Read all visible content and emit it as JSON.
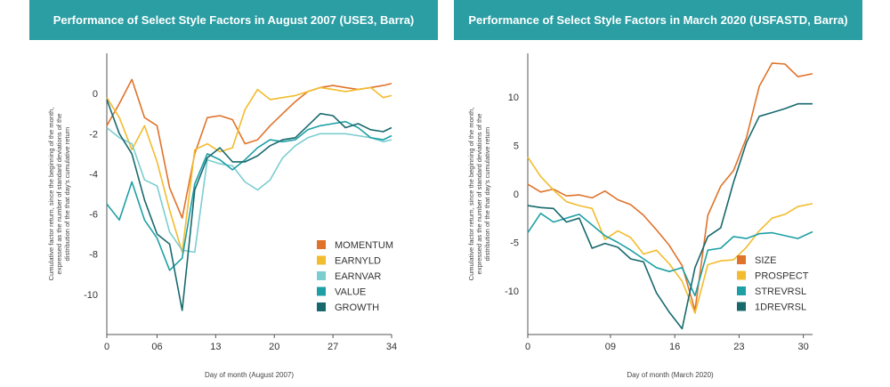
{
  "charts": [
    {
      "title": "Performance of Select Style Factors in August 2007 (USE3, Barra)",
      "xlabel": "Day of month (August 2007)",
      "ylabel_lines": [
        "Cumulative factor return, since the beginning of the month,",
        "expressed as the number of standard deviations of the",
        "distribution of the that day's cumulative return"
      ],
      "xticks": [
        "0",
        "06",
        "13",
        "20",
        "27",
        "34"
      ],
      "yticks": [
        "0",
        "-2",
        "-4",
        "-6",
        "-8",
        "-10"
      ]
    },
    {
      "title": "Performance of Select Style Factors in March 2020 (USFASTD, Barra)",
      "xlabel": "Day of month (March 2020)",
      "ylabel_lines": [
        "Cumulative factor return, since the beginning of the month,",
        "expressed as the number of standard deviations of the",
        "distribution of the that day's cumulative return"
      ],
      "xticks": [
        "0",
        "09",
        "16",
        "23",
        "30"
      ],
      "yticks": [
        "10",
        "5",
        "0",
        "-5",
        "-10"
      ]
    }
  ],
  "chart_data": [
    {
      "type": "line",
      "title": "Performance of Select Style Factors in August 2007 (USE3, Barra)",
      "xlabel": "Day of month (August 2007)",
      "ylabel": "Cumulative factor return, since the beginning of the month, expressed as the number of standard deviations of the distribution of the that day's cumulative return",
      "xlim": [
        0,
        34
      ],
      "ylim": [
        -12.0,
        2.0
      ],
      "x": [
        0,
        1.5,
        3,
        4.5,
        6,
        7.5,
        9,
        10.5,
        12,
        13.5,
        15,
        16.5,
        18,
        19.5,
        21,
        22.5,
        24,
        25.5,
        27,
        28.5,
        30,
        31.5,
        33,
        34
      ],
      "series": [
        {
          "name": "MOMENTUM",
          "color": "#e0732a",
          "values": [
            -1.6,
            -0.5,
            0.7,
            -1.2,
            -1.6,
            -4.7,
            -6.2,
            -3.0,
            -1.2,
            -1.1,
            -1.3,
            -2.5,
            -2.3,
            -1.6,
            -1.0,
            -0.4,
            0.1,
            0.3,
            0.4,
            0.3,
            0.2,
            0.3,
            0.4,
            0.5
          ]
        },
        {
          "name": "EARNYLD",
          "color": "#f2bc2e",
          "values": [
            -0.2,
            -1.2,
            -2.8,
            -1.6,
            -3.4,
            -5.8,
            -7.9,
            -2.8,
            -2.5,
            -2.9,
            -2.7,
            -0.8,
            0.2,
            -0.3,
            -0.2,
            -0.1,
            0.1,
            0.3,
            0.2,
            0.1,
            0.2,
            0.3,
            -0.2,
            -0.1
          ]
        },
        {
          "name": "EARNVAR",
          "color": "#7ccdd0",
          "values": [
            -1.7,
            -2.2,
            -2.5,
            -4.3,
            -4.6,
            -6.9,
            -7.8,
            -7.9,
            -3.3,
            -3.5,
            -3.6,
            -4.4,
            -4.8,
            -4.3,
            -3.2,
            -2.6,
            -2.2,
            -2.0,
            -2.0,
            -2.0,
            -2.1,
            -2.2,
            -2.4,
            -2.3
          ]
        },
        {
          "name": "VALUE",
          "color": "#1da0a5",
          "values": [
            -5.5,
            -6.3,
            -4.4,
            -6.3,
            -7.2,
            -8.8,
            -8.2,
            -4.5,
            -3.0,
            -3.3,
            -3.8,
            -3.3,
            -2.7,
            -2.3,
            -2.4,
            -2.3,
            -1.8,
            -1.6,
            -1.5,
            -1.4,
            -1.7,
            -2.2,
            -2.3,
            -2.1
          ]
        },
        {
          "name": "GROWTH",
          "color": "#17696e",
          "values": [
            -0.3,
            -2.0,
            -3.0,
            -5.3,
            -7.0,
            -7.5,
            -10.8,
            -4.8,
            -3.2,
            -2.7,
            -3.4,
            -3.4,
            -3.1,
            -2.6,
            -2.3,
            -2.2,
            -1.6,
            -1.0,
            -1.1,
            -1.7,
            -1.5,
            -1.8,
            -1.9,
            -1.7
          ]
        }
      ],
      "legend_position": "bottom-right",
      "grid": false
    },
    {
      "type": "line",
      "title": "Performance of Select Style Factors in March 2020 (USFASTD, Barra)",
      "xlabel": "Day of month (March 2020)",
      "ylabel": "Cumulative factor return, since the beginning of the month, expressed as the number of standard deviations of the distribution of the that day's cumulative return",
      "xlim": [
        0,
        31
      ],
      "ylim": [
        -14.5,
        14.5
      ],
      "x": [
        0,
        1.4,
        2.8,
        4.2,
        5.6,
        7,
        8.4,
        9.8,
        11.2,
        12.6,
        14,
        15.4,
        16.8,
        18.2,
        19.6,
        21,
        22.4,
        23.8,
        25.2,
        26.6,
        28,
        29.4,
        31
      ],
      "series": [
        {
          "name": "SIZE",
          "color": "#e0732a",
          "values": [
            1.0,
            0.2,
            0.5,
            -0.2,
            -0.1,
            -0.4,
            0.3,
            -0.6,
            -1.1,
            -2.2,
            -3.7,
            -5.3,
            -7.4,
            -12.0,
            -2.2,
            0.8,
            2.4,
            5.8,
            11.1,
            13.5,
            13.4,
            12.1,
            12.4
          ]
        },
        {
          "name": "PROSPECT",
          "color": "#f2bc2e",
          "values": [
            3.8,
            1.8,
            0.4,
            -0.8,
            -1.2,
            -1.5,
            -4.7,
            -3.8,
            -4.5,
            -6.2,
            -5.8,
            -7.2,
            -9.0,
            -12.3,
            -7.3,
            -6.9,
            -6.8,
            -5.5,
            -3.8,
            -2.5,
            -2.1,
            -1.3,
            -1.0
          ]
        },
        {
          "name": "STREVRSL",
          "color": "#1da0a5",
          "values": [
            -4.0,
            -2.0,
            -2.9,
            -2.5,
            -2.1,
            -3.2,
            -4.3,
            -5.0,
            -5.8,
            -6.7,
            -7.6,
            -8.0,
            -7.6,
            -10.5,
            -5.8,
            -5.6,
            -4.4,
            -4.6,
            -4.1,
            -4.0,
            -4.3,
            -4.6,
            -3.9
          ]
        },
        {
          "name": "1DREVRSL",
          "color": "#17696e",
          "values": [
            -1.2,
            -1.4,
            -1.5,
            -2.9,
            -2.5,
            -5.6,
            -5.1,
            -5.5,
            -6.7,
            -7.0,
            -10.2,
            -12.2,
            -13.9,
            -7.6,
            -4.4,
            -3.5,
            1.2,
            5.3,
            8.0,
            8.4,
            8.8,
            9.3,
            9.3
          ]
        }
      ],
      "legend_position": "bottom-right",
      "grid": false
    }
  ]
}
